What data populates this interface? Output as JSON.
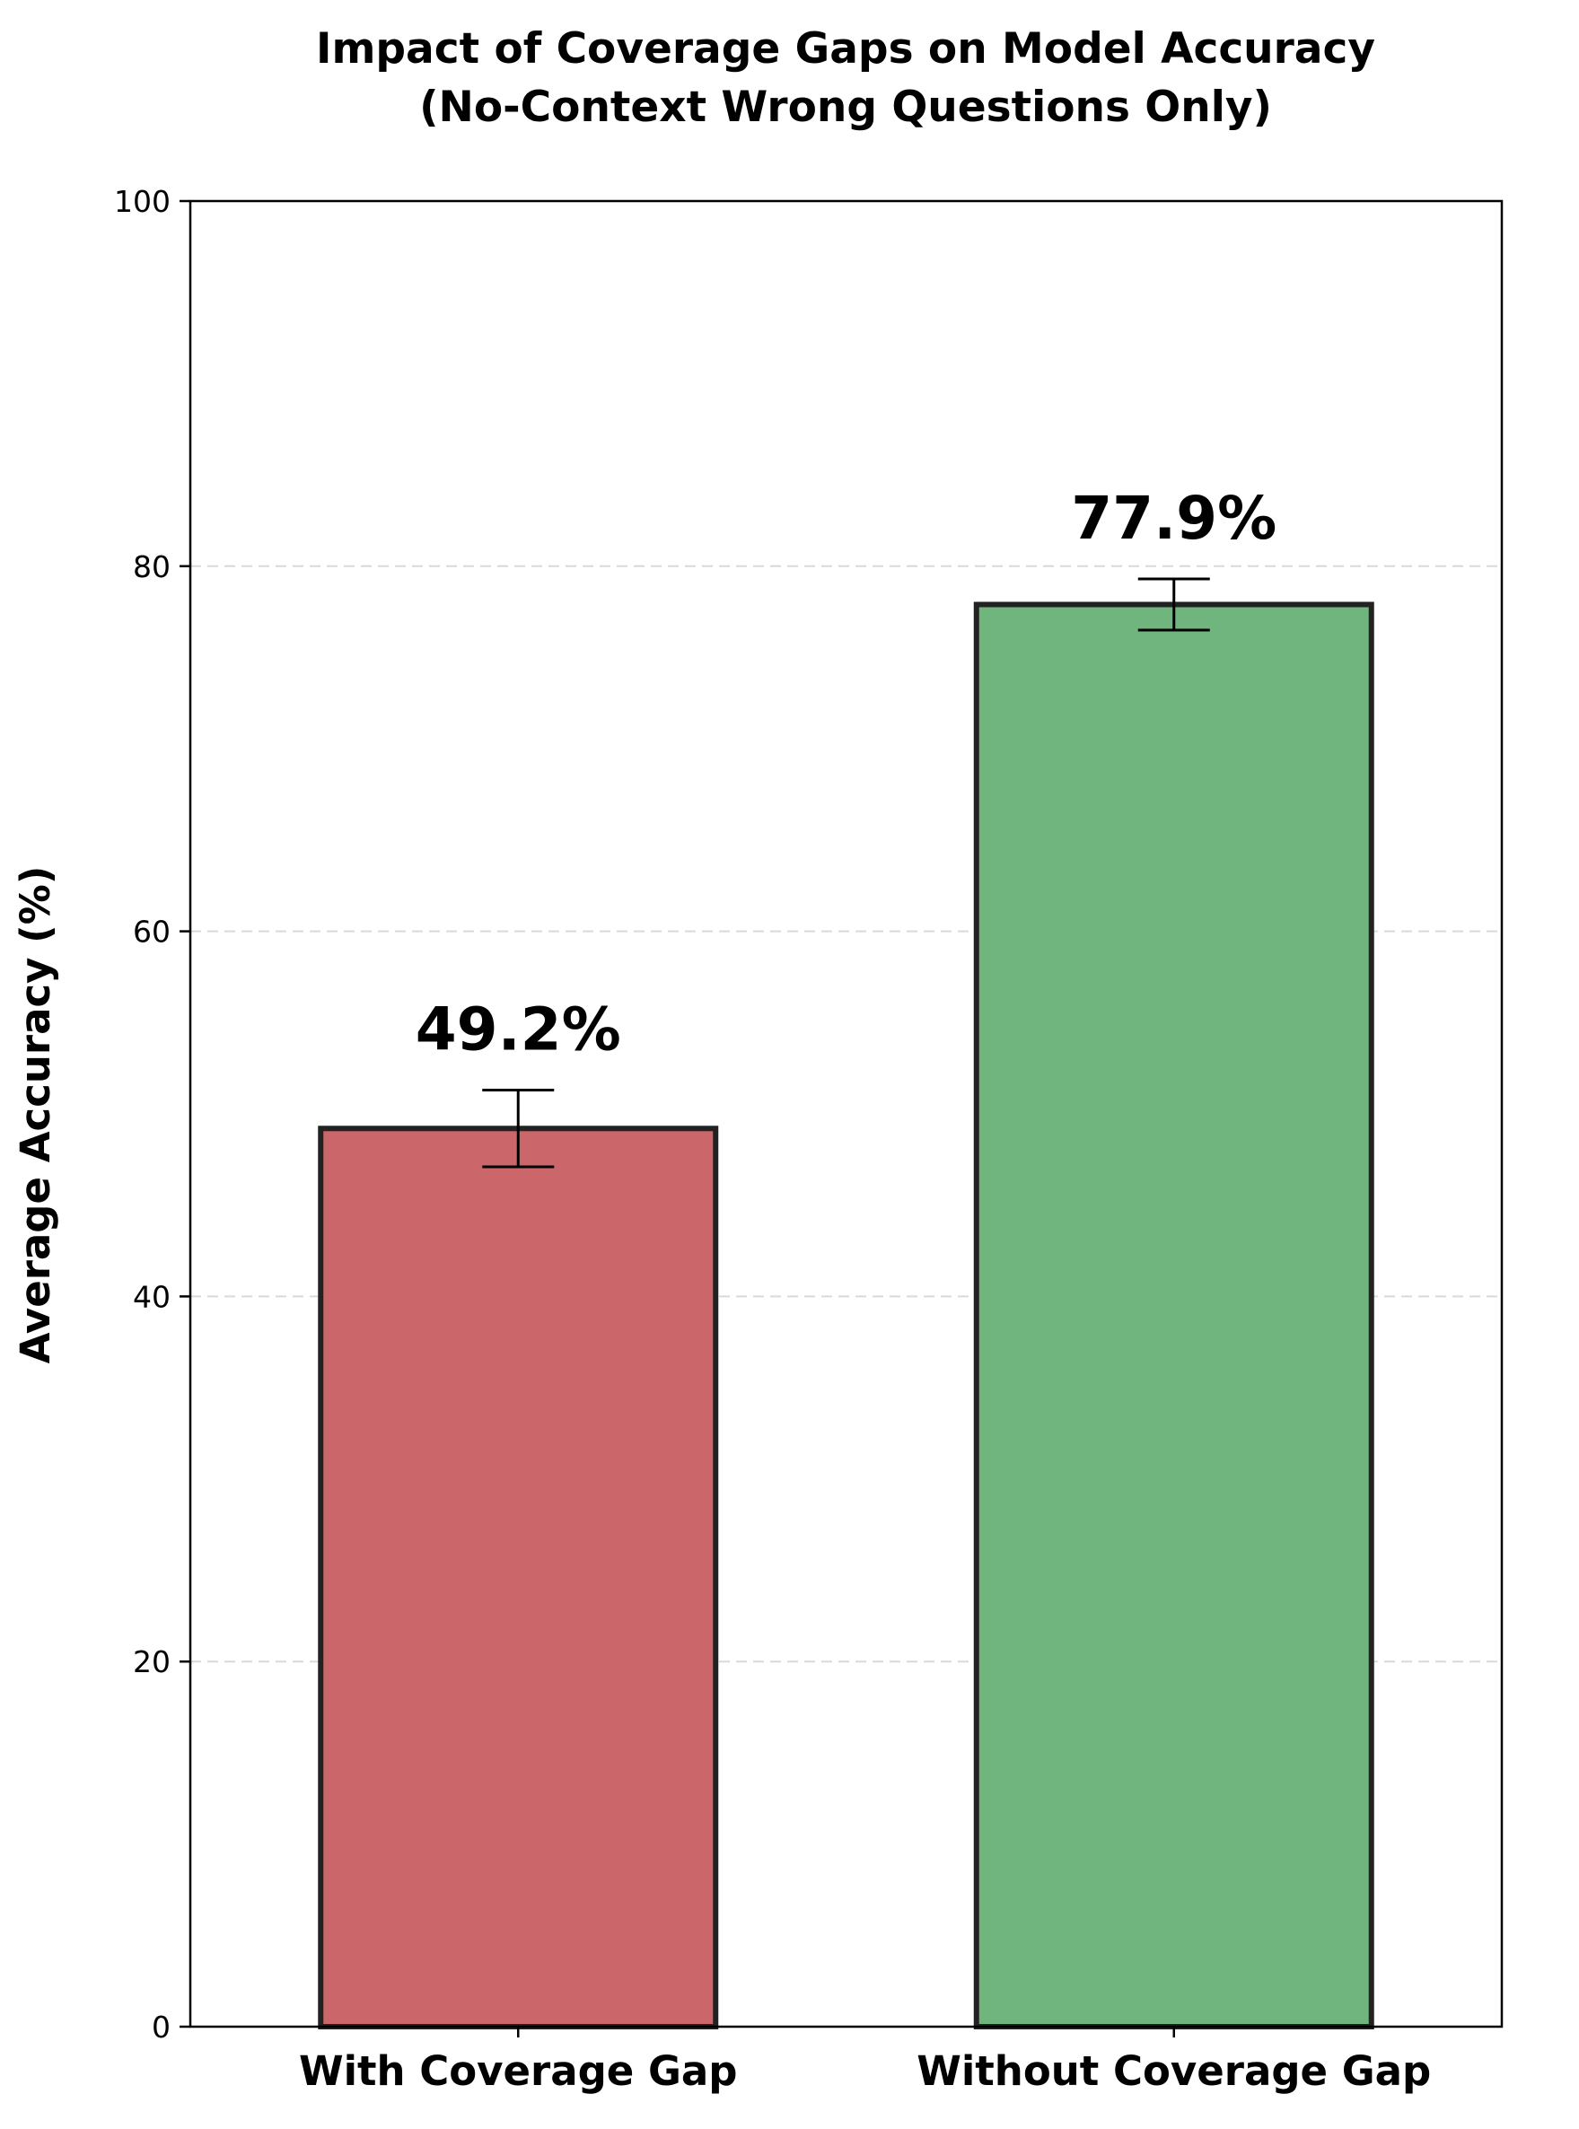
{
  "chart_data": {
    "type": "bar",
    "title": "Impact of Coverage Gaps on Model Accuracy",
    "subtitle": "(No-Context Wrong Questions Only)",
    "xlabel": "",
    "ylabel": "Average Accuracy (%)",
    "ylim": [
      0,
      100
    ],
    "yticks": [
      0,
      20,
      40,
      60,
      80,
      100
    ],
    "ytick_labels": [
      "0",
      "20",
      "40",
      "60",
      "80",
      "100"
    ],
    "grid": "horizontal-dashed",
    "categories": [
      "With Coverage Gap",
      "Without Coverage Gap"
    ],
    "values": [
      49.2,
      77.9
    ],
    "error": [
      2.1,
      1.4
    ],
    "value_labels": [
      "49.2%",
      "77.9%"
    ],
    "colors": [
      "#cb676b",
      "#70b57e"
    ],
    "edge_color": "#222222"
  }
}
